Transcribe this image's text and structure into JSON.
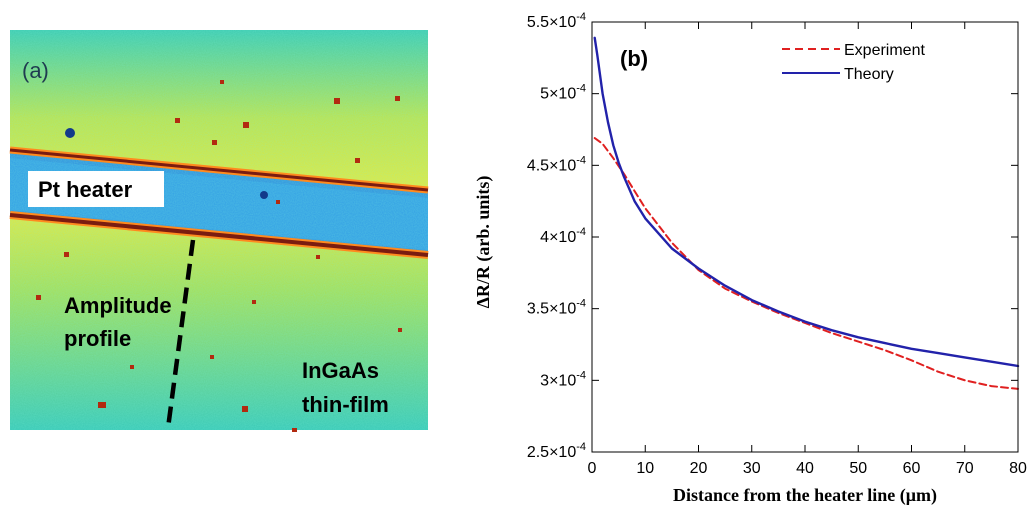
{
  "panel_a": {
    "label": "(a)",
    "annotations": {
      "heater": "Pt heater",
      "profile_line1": "Amplitude",
      "profile_line2": "profile",
      "film_line1": "InGaAs",
      "film_line2": "thin-film"
    },
    "colors": {
      "background": "#35c9b4",
      "yellow_band": "#d9e84a",
      "heater_stripe": "#2f8fe0",
      "edge_dark": "#7a1c10",
      "edge_orange": "#ff7a1e"
    }
  },
  "chart_data": {
    "type": "line",
    "panel_label": "(b)",
    "xlabel": "Distance from the heater line (μm)",
    "ylabel": "ΔR/R (arb. units)",
    "xlim": [
      0,
      80
    ],
    "ylim": [
      0.00025,
      0.00055
    ],
    "xticks": [
      0,
      10,
      20,
      30,
      40,
      50,
      60,
      70,
      80
    ],
    "yticks": [
      {
        "value": 0.00025,
        "mantissa": "2.5",
        "exponent": "-4"
      },
      {
        "value": 0.0003,
        "mantissa": "3",
        "exponent": "-4"
      },
      {
        "value": 0.00035,
        "mantissa": "3.5",
        "exponent": "-4"
      },
      {
        "value": 0.0004,
        "mantissa": "4",
        "exponent": "-4"
      },
      {
        "value": 0.00045,
        "mantissa": "4.5",
        "exponent": "-4"
      },
      {
        "value": 0.0005,
        "mantissa": "5",
        "exponent": "-4"
      },
      {
        "value": 0.00055,
        "mantissa": "5.5",
        "exponent": "-4"
      }
    ],
    "legend_position": "top-right",
    "series": [
      {
        "name": "Experiment",
        "color": "#e02020",
        "style": "dashed",
        "x": [
          0.5,
          2,
          4,
          6,
          8,
          10,
          15,
          20,
          25,
          30,
          35,
          40,
          45,
          50,
          55,
          60,
          65,
          70,
          75,
          80
        ],
        "y": [
          0.000469,
          0.000465,
          0.000455,
          0.000444,
          0.000432,
          0.00042,
          0.000396,
          0.000377,
          0.000364,
          0.000355,
          0.000347,
          0.00034,
          0.000333,
          0.000327,
          0.000321,
          0.000314,
          0.000306,
          0.0003,
          0.000296,
          0.000294
        ]
      },
      {
        "name": "Theory",
        "color": "#2222aa",
        "style": "solid",
        "x": [
          0.5,
          1,
          2,
          3,
          4,
          5,
          6,
          8,
          10,
          15,
          20,
          25,
          30,
          35,
          40,
          45,
          50,
          55,
          60,
          65,
          70,
          75,
          80
        ],
        "y": [
          0.000539,
          0.000527,
          0.0005,
          0.00048,
          0.000464,
          0.000452,
          0.000442,
          0.000425,
          0.000413,
          0.000392,
          0.000378,
          0.000366,
          0.000356,
          0.000348,
          0.000341,
          0.000335,
          0.00033,
          0.000326,
          0.000322,
          0.000319,
          0.000316,
          0.000313,
          0.00031
        ]
      }
    ]
  }
}
